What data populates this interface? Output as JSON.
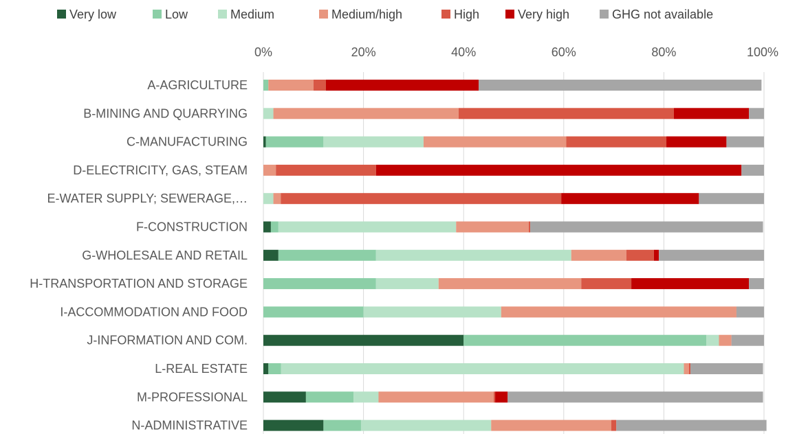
{
  "chart_data": {
    "type": "bar",
    "orientation": "horizontal",
    "stacked": "percent",
    "legend_position": "top",
    "grid": "vertical",
    "xlim": [
      0,
      100
    ],
    "x_ticks": [
      "0%",
      "20%",
      "40%",
      "60%",
      "80%",
      "100%"
    ],
    "x_tick_values": [
      0,
      20,
      40,
      60,
      80,
      100
    ],
    "categories": [
      "A-AGRICULTURE",
      "B-MINING AND QUARRYING",
      "C-MANUFACTURING",
      "D-ELECTRICITY, GAS, STEAM",
      "E-WATER SUPPLY; SEWERAGE,…",
      "F-CONSTRUCTION",
      "G-WHOLESALE AND RETAIL",
      "H-TRANSPORTATION AND STORAGE",
      "I-ACCOMMODATION AND FOOD",
      "J-INFORMATION AND COM.",
      "L-REAL ESTATE",
      "M-PROFESSIONAL",
      "N-ADMINISTRATIVE"
    ],
    "series": [
      {
        "name": "Very low",
        "color": "#255e3b",
        "values": [
          0,
          0,
          0.5,
          0,
          0,
          1.5,
          3,
          0,
          0,
          40,
          1,
          8.5,
          12
        ]
      },
      {
        "name": "Low",
        "color": "#8ccfa7",
        "values": [
          1,
          0,
          11.5,
          0,
          0,
          1.5,
          19.5,
          22.5,
          20,
          48.5,
          2.5,
          9.5,
          7.5
        ]
      },
      {
        "name": "Medium",
        "color": "#b7e2c7",
        "values": [
          0,
          2,
          20,
          0,
          2,
          35.5,
          39,
          12.5,
          27.5,
          2.5,
          80.5,
          5,
          26
        ]
      },
      {
        "name": "Medium/high",
        "color": "#e8967f",
        "values": [
          9,
          37,
          28.5,
          2.5,
          1.5,
          14.5,
          11,
          28.5,
          47,
          2.5,
          1,
          23,
          24
        ]
      },
      {
        "name": "High",
        "color": "#d85745",
        "values": [
          2.5,
          43,
          20,
          20,
          56,
          0.3,
          5.5,
          10,
          0,
          0,
          0.3,
          0.3,
          1
        ]
      },
      {
        "name": "Very high",
        "color": "#c00000",
        "values": [
          30.5,
          15,
          12,
          73,
          27.5,
          0,
          1,
          23.5,
          0,
          0,
          0,
          2.5,
          0
        ]
      },
      {
        "name": "GHG not available",
        "color": "#a6a6a6",
        "values": [
          56.5,
          3,
          7.5,
          4.5,
          13,
          46.5,
          21,
          3,
          5.5,
          6.5,
          14.5,
          51,
          30
        ]
      }
    ]
  }
}
